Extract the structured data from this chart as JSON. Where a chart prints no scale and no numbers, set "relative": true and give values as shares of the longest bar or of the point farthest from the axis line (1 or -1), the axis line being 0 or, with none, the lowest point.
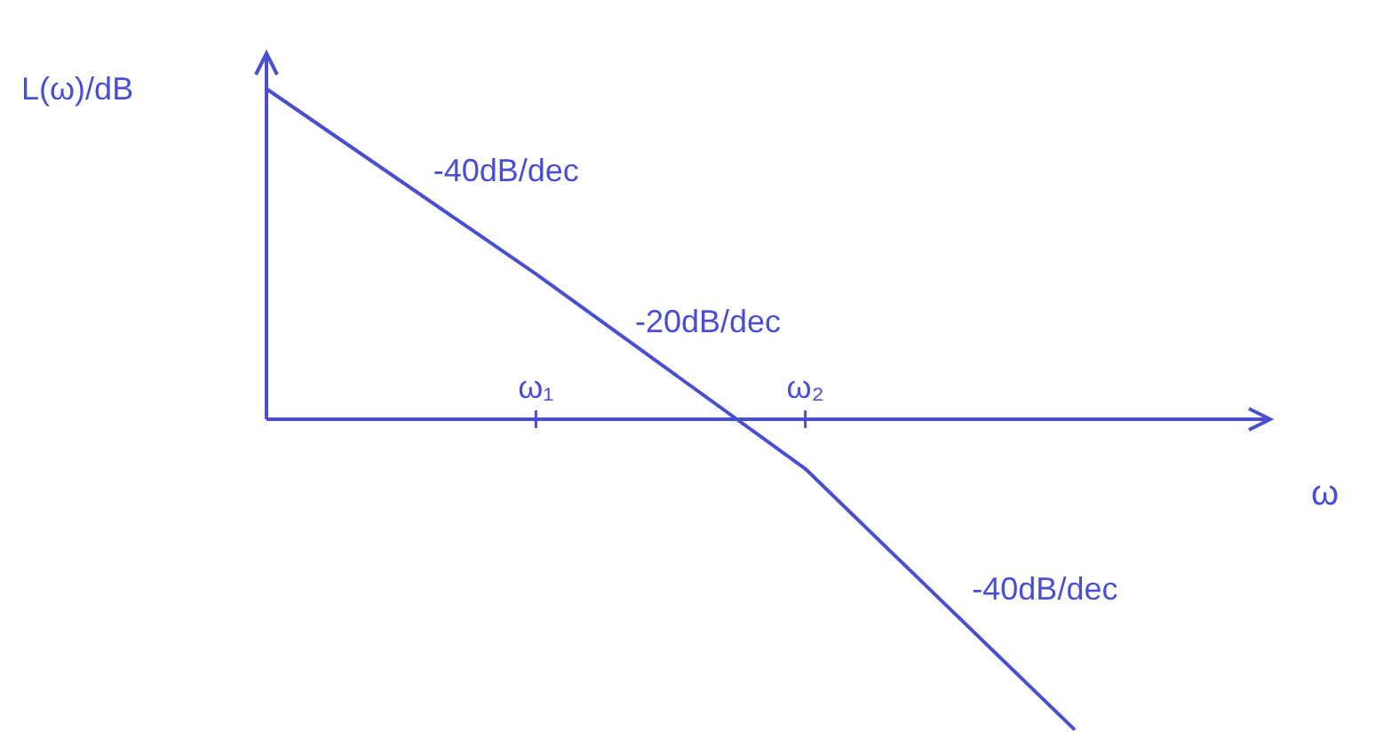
{
  "chart_data": {
    "type": "line",
    "relative": true,
    "ylabel": "L(ω)/dB",
    "xlabel": "ω",
    "categories": [
      null,
      "ω₁",
      "ω₂",
      null
    ],
    "series": [
      {
        "color": "#4a4fd0",
        "values": [
          1,
          0.44,
          -0.15,
          -0.94
        ]
      }
    ],
    "annotations": [
      "-40dB/dec",
      "-20dB/dec",
      "-40dB/dec"
    ],
    "marker": "none",
    "line_style": "solid"
  }
}
